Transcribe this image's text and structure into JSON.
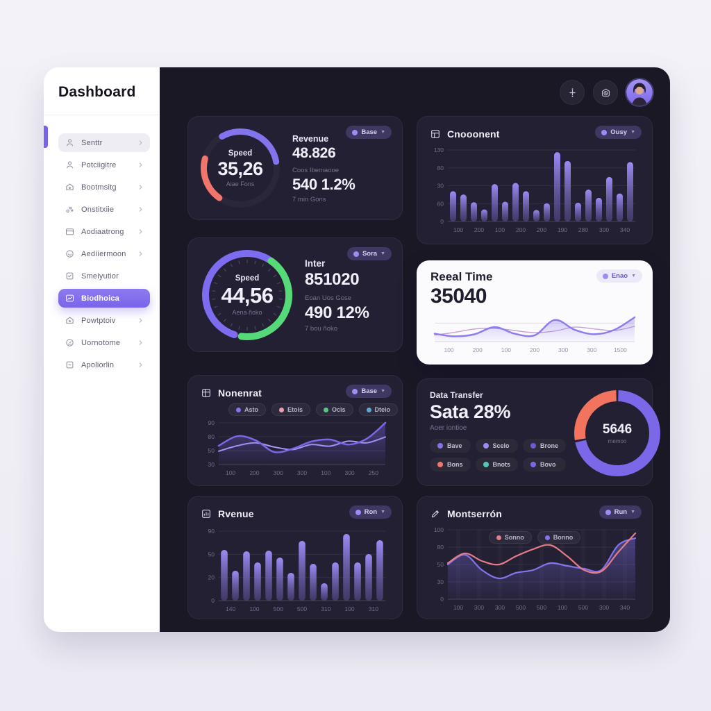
{
  "sidebar": {
    "title": "Dashboard",
    "items": [
      {
        "label": "Senttr",
        "icon": "user",
        "state": "hl",
        "chevron": true
      },
      {
        "label": "Potciigitre",
        "icon": "user",
        "state": "",
        "chevron": true
      },
      {
        "label": "Bootmsitg",
        "icon": "home",
        "state": "",
        "chevron": true
      },
      {
        "label": "Onstitxiie",
        "icon": "circles",
        "state": "",
        "chevron": true
      },
      {
        "label": "Aodiaatrong",
        "icon": "card",
        "state": "",
        "chevron": true
      },
      {
        "label": "Aedíiermoon",
        "icon": "face",
        "state": "",
        "chevron": true
      },
      {
        "label": "Smeiyutior",
        "icon": "check-square",
        "state": "",
        "chevron": false
      },
      {
        "label": "Biodhoica",
        "icon": "chart",
        "state": "active",
        "chevron": false
      },
      {
        "label": "Powtptoiv",
        "icon": "home",
        "state": "",
        "chevron": true
      },
      {
        "label": "Uornotome",
        "icon": "gauge",
        "state": "",
        "chevron": true
      },
      {
        "label": "Apoliorlin",
        "icon": "box",
        "state": "",
        "chevron": true
      }
    ]
  },
  "topbar": {
    "icons": [
      "adjust-icon",
      "history-icon"
    ],
    "avatar": "user-avatar"
  },
  "cards": {
    "speed1": {
      "badge": "Base",
      "gauge_label": "Speed",
      "gauge_value": "35,26",
      "gauge_sub": "Aiae Fons",
      "stat1_label": "Revenue",
      "stat1_value": "48.826",
      "stat2_label": "Coos Ibemaooe",
      "stat2_value": "540 1.2%",
      "stat2_sub": "7 min Gons"
    },
    "component": {
      "title": "Cnooonent",
      "badge": "Ousy"
    },
    "speed2": {
      "badge": "Sora",
      "gauge_label": "Speed",
      "gauge_value": "44,56",
      "gauge_sub": "Aena ñoko",
      "stat1_label": "Inter",
      "stat1_value": "851020",
      "stat2_label": "Eoan Uos Gose",
      "stat2_value": "490 12%",
      "stat2_sub": "7 bou ñoko"
    },
    "realtime": {
      "title": "Reeal Time",
      "value": "35040",
      "badge": "Enao"
    },
    "nonenrat": {
      "title": "Nonenrat",
      "badge": "Base",
      "legend": [
        {
          "label": "Asto",
          "color": "#8374ee"
        },
        {
          "label": "Etois",
          "color": "#e8a0b4"
        },
        {
          "label": "Ocis",
          "color": "#56c97e"
        },
        {
          "label": "Dteio",
          "color": "#5fa8d8"
        }
      ]
    },
    "transfer": {
      "title": "Data Transfer",
      "value": "Sata 28%",
      "subtitle": "Aoer iontioe",
      "center_value": "5646",
      "center_sub": "memoo",
      "chips": [
        {
          "label": "Bave",
          "color": "#8374ee"
        },
        {
          "label": "Scelo",
          "color": "#9b8cf4"
        },
        {
          "label": "Brone",
          "color": "#6a5bd0"
        },
        {
          "label": "Bons",
          "color": "#f0756c"
        },
        {
          "label": "Bnots",
          "color": "#53c8b6"
        },
        {
          "label": "Bovo",
          "color": "#7a68e8"
        }
      ]
    },
    "revenue": {
      "title": "Rvenue",
      "badge": "Ron"
    },
    "montserrat": {
      "title": "Montserrón",
      "badge": "Run",
      "legend": [
        {
          "label": "Sonno",
          "color": "#e57d87"
        },
        {
          "label": "Bonno",
          "color": "#8374ee"
        }
      ]
    }
  },
  "colors": {
    "accent_purple": "#8374ee",
    "coral": "#f0756c",
    "green": "#56d978",
    "teal": "#53c8b6",
    "pink_line": "#e57d87",
    "main_bg": "#1b1826",
    "card_bg": "#232034"
  },
  "chart_data": [
    {
      "id": "speed-gauge-1",
      "type": "gauge",
      "stroke": 9,
      "track": true,
      "ticks": false,
      "center_label": "Speed",
      "center_value": "35,26",
      "arcs": [
        {
          "color": "#8374ee",
          "start": -30,
          "end": 80
        },
        {
          "color": "#f0756c",
          "start": 215,
          "end": 285
        }
      ]
    },
    {
      "id": "component-bars",
      "type": "bar",
      "title": "Cnooonent",
      "ylim": [
        0,
        130
      ],
      "yticks": [
        "130",
        "80",
        "30",
        "60",
        "0"
      ],
      "categories": [
        "100",
        "200",
        "100",
        "200",
        "200",
        "190",
        "280",
        "300",
        "340"
      ],
      "values": [
        55,
        49,
        35,
        22,
        68,
        36,
        70,
        55,
        21,
        33,
        126,
        110,
        34,
        58,
        43,
        81,
        51,
        108
      ],
      "bar_colors": [
        "#9b8cf4",
        "#5b4d8f"
      ]
    },
    {
      "id": "speed-gauge-2",
      "type": "gauge",
      "stroke": 10,
      "track": true,
      "ticks": true,
      "center_label": "Speed",
      "center_value": "44,56",
      "arcs": [
        {
          "color": "#7e6cf0",
          "start": 198,
          "end": 393
        },
        {
          "color": "#56d978",
          "start": 35,
          "end": 188
        }
      ]
    },
    {
      "id": "realtime-line",
      "type": "area",
      "theme": "light",
      "title": "Reeal Time",
      "categories": [
        "100",
        "200",
        "100",
        "200",
        "300",
        "300",
        "1500"
      ],
      "gridlines": [
        0.3
      ],
      "series": [
        {
          "name": "secondary",
          "color": "#c9a0cf",
          "width": 1.4,
          "values": [
            25,
            35,
            48,
            50,
            42,
            34,
            40,
            55,
            48,
            42,
            58
          ]
        },
        {
          "name": "main",
          "color": "#8d7bf0",
          "width": 2.5,
          "fill": true,
          "values": [
            30,
            20,
            28,
            55,
            30,
            24,
            82,
            45,
            28,
            45,
            92
          ]
        }
      ]
    },
    {
      "id": "nonenrat-line",
      "type": "area",
      "title": "Nonenrat",
      "yticks": [
        "90",
        "80",
        "50",
        "30"
      ],
      "categories": [
        "100",
        "200",
        "300",
        "300",
        "100",
        "300",
        "250"
      ],
      "series": [
        {
          "name": "light",
          "color": "#a89bf5",
          "width": 2,
          "values": [
            32,
            45,
            52,
            42,
            36,
            48,
            44,
            56,
            52,
            66
          ]
        },
        {
          "name": "dark",
          "color": "#7a68e8",
          "width": 2.5,
          "fill": true,
          "values": [
            45,
            68,
            58,
            30,
            38,
            55,
            60,
            48,
            62,
            100
          ]
        }
      ]
    },
    {
      "id": "transfer-donut",
      "type": "pie",
      "center_value": "5646",
      "center_sub": "memoo",
      "slices": [
        {
          "label": "Bave",
          "value": 72,
          "color": "#7a68e8"
        },
        {
          "label": "Bons",
          "value": 28,
          "color": "#f2745e"
        }
      ]
    },
    {
      "id": "revenue-bars",
      "type": "bar",
      "title": "Rvenue",
      "ylim": [
        0,
        100
      ],
      "yticks": [
        "90",
        "50",
        "20",
        "0"
      ],
      "categories": [
        "140",
        "100",
        "500",
        "500",
        "310",
        "100",
        "310"
      ],
      "values": [
        73,
        43,
        71,
        55,
        72,
        62,
        40,
        86,
        53,
        25,
        55,
        96,
        55,
        67,
        87
      ],
      "bar_colors": [
        "#9b8cf4",
        "#5b4d8f"
      ]
    },
    {
      "id": "montserrat-line",
      "type": "line",
      "title": "Montserrón",
      "vgrid": true,
      "yticks": [
        "100",
        "80",
        "50",
        "30",
        "0"
      ],
      "categories": [
        "100",
        "300",
        "300",
        "500",
        "500",
        "100",
        "500",
        "300",
        "340"
      ],
      "series": [
        {
          "name": "Bonno",
          "color": "#8374ee",
          "width": 2.2,
          "fill": true,
          "values": [
            50,
            64,
            42,
            30,
            38,
            42,
            52,
            48,
            44,
            42,
            78,
            88
          ]
        },
        {
          "name": "Sonno",
          "color": "#e57d87",
          "width": 2.2,
          "values": [
            52,
            66,
            55,
            50,
            62,
            72,
            78,
            62,
            42,
            40,
            68,
            95
          ]
        }
      ]
    }
  ]
}
